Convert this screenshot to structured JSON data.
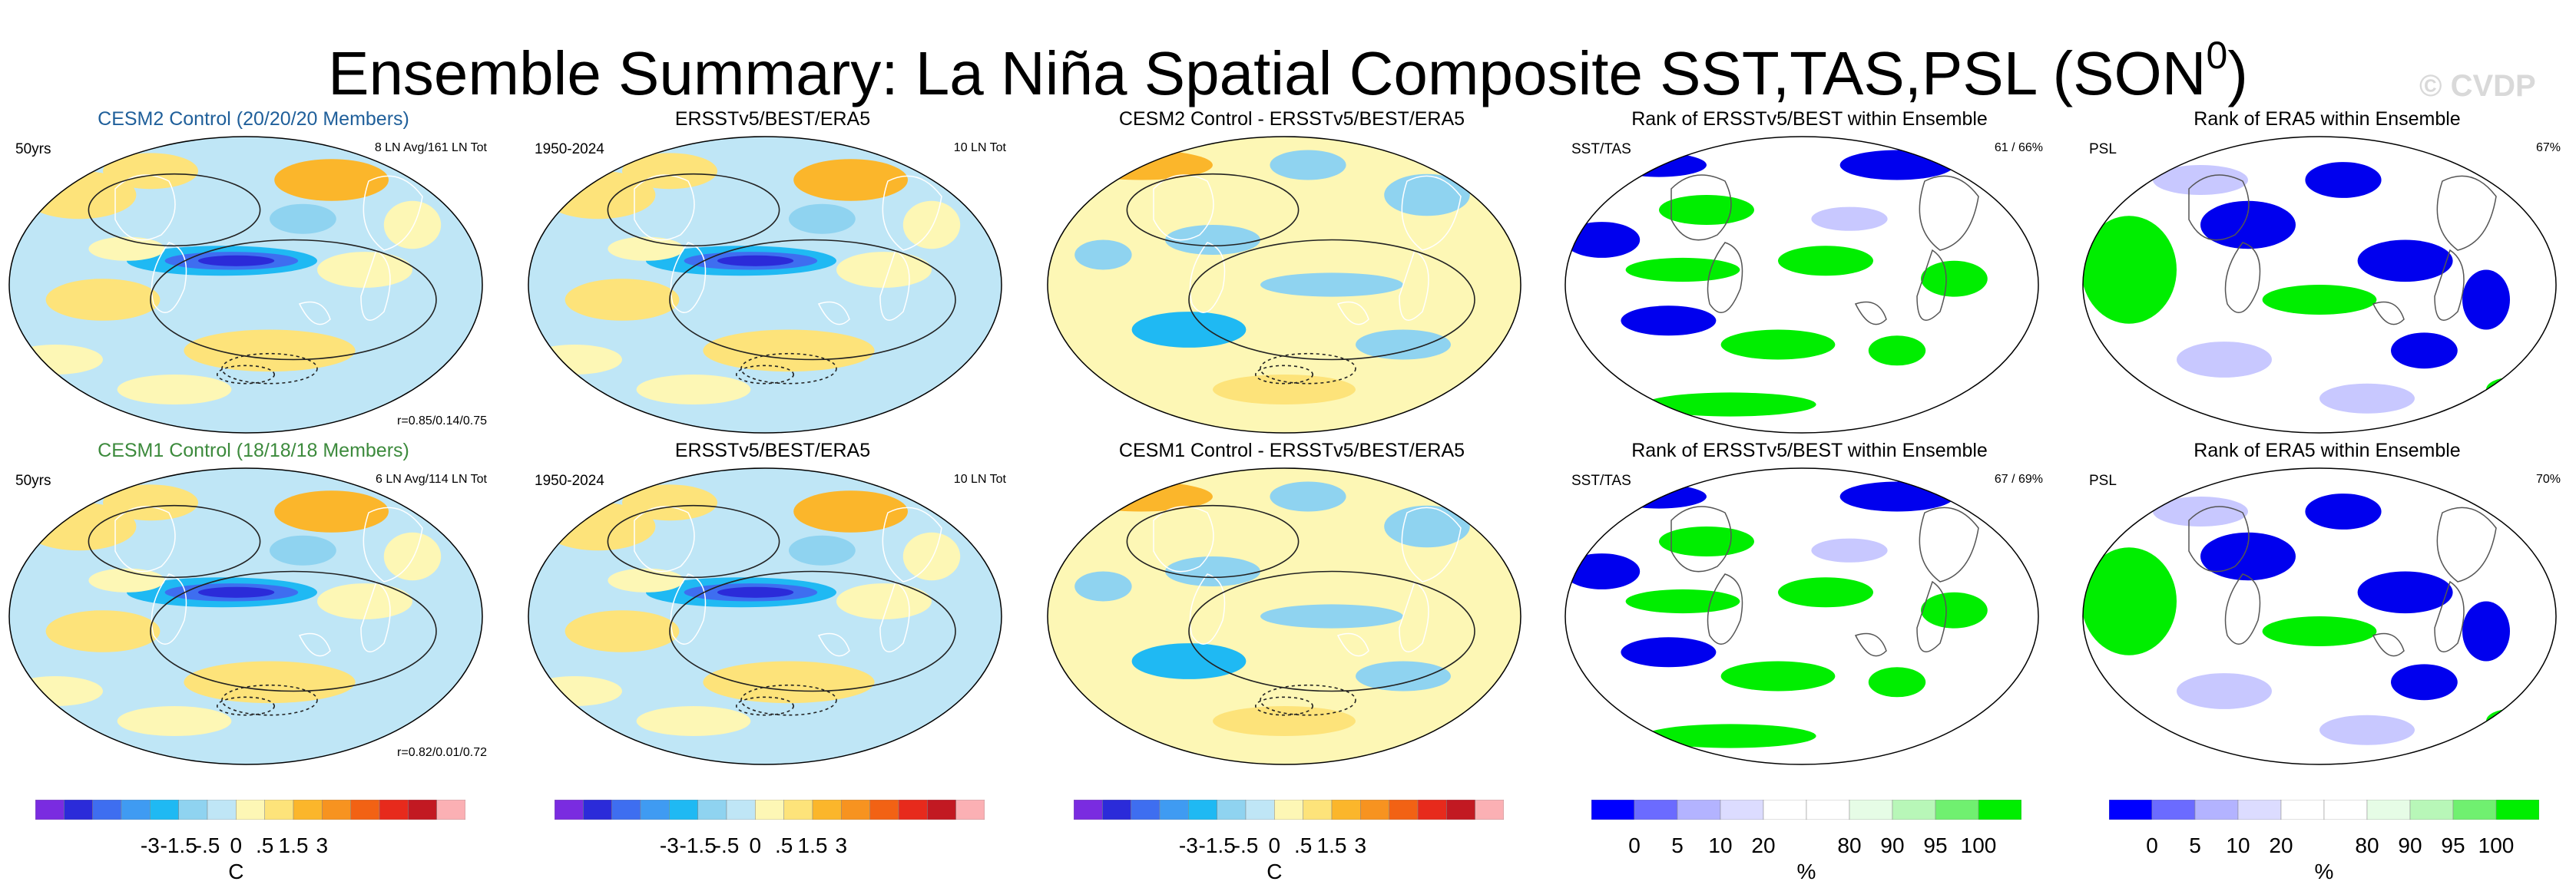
{
  "header": {
    "title": "Ensemble Summary: La Niña Spatial Composite SST,TAS,PSL (SON",
    "title_sup": "0",
    "title_close": ")",
    "watermark": "© CVDP"
  },
  "colors": {
    "diverging": [
      "#7a2ce0",
      "#2b2bd9",
      "#3e6ef0",
      "#3f9bf2",
      "#1fb9f3",
      "#8fd3f0",
      "#bfe6f6",
      "#fdf7b5",
      "#fde37a",
      "#fbb62b",
      "#f79320",
      "#f26214",
      "#e72a1c",
      "#c21922",
      "#fbb0b4"
    ],
    "rank": [
      "#0000ff",
      "#6b6bff",
      "#b3b3ff",
      "#dcdcff",
      "#ffffff",
      "#ffffff",
      "#e6fce6",
      "#b8f7b8",
      "#70f070",
      "#00ee00"
    ],
    "blue": "#0000ee",
    "green": "#00ee00",
    "light_blue_rank": "#c8c8ff"
  },
  "panels": [
    {
      "id": "r1c1",
      "type": "anomaly",
      "title": "CESM2 Control (20/20/20 Members)",
      "title_color": "#1f5f9a",
      "left_tag": "50yrs",
      "right_tag": "8 LN Avg/161 LN Tot",
      "stat": "r=0.85/0.14/0.75"
    },
    {
      "id": "r1c2",
      "type": "anomaly",
      "title": "ERSSTv5/BEST/ERA5",
      "title_color": "#000000",
      "left_tag": "1950-2024",
      "right_tag": "10 LN Tot",
      "stat": ""
    },
    {
      "id": "r1c3",
      "type": "diff",
      "title": "CESM2 Control - ERSSTv5/BEST/ERA5",
      "title_color": "#000000",
      "left_tag": "",
      "right_tag": "",
      "stat": ""
    },
    {
      "id": "r1c4",
      "type": "rank",
      "title": "Rank of ERSSTv5/BEST within Ensemble",
      "title_color": "#000000",
      "left_tag": "SST/TAS",
      "right_tag": "61 /  66%",
      "stat": ""
    },
    {
      "id": "r1c5",
      "type": "rank2",
      "title": "Rank of ERA5 within Ensemble",
      "title_color": "#000000",
      "left_tag": "PSL",
      "right_tag": "67%",
      "stat": ""
    },
    {
      "id": "r2c1",
      "type": "anomaly",
      "title": "CESM1 Control (18/18/18 Members)",
      "title_color": "#3c8a3c",
      "left_tag": "50yrs",
      "right_tag": "6 LN Avg/114 LN Tot",
      "stat": "r=0.82/0.01/0.72"
    },
    {
      "id": "r2c2",
      "type": "anomaly",
      "title": "ERSSTv5/BEST/ERA5",
      "title_color": "#000000",
      "left_tag": "1950-2024",
      "right_tag": "10 LN Tot",
      "stat": ""
    },
    {
      "id": "r2c3",
      "type": "diff",
      "title": "CESM1 Control - ERSSTv5/BEST/ERA5",
      "title_color": "#000000",
      "left_tag": "",
      "right_tag": "",
      "stat": ""
    },
    {
      "id": "r2c4",
      "type": "rank",
      "title": "Rank of ERSSTv5/BEST within Ensemble",
      "title_color": "#000000",
      "left_tag": "SST/TAS",
      "right_tag": "67 /  69%",
      "stat": ""
    },
    {
      "id": "r2c5",
      "type": "rank2",
      "title": "Rank of ERA5 within Ensemble",
      "title_color": "#000000",
      "left_tag": "PSL",
      "right_tag": "70%",
      "stat": ""
    }
  ],
  "colorbars": [
    {
      "kind": "diverging",
      "ticks": [
        "-3",
        "-1.5",
        "-.5",
        "0",
        ".5",
        "1.5",
        "3"
      ],
      "unit": "C"
    },
    {
      "kind": "diverging",
      "ticks": [
        "-3",
        "-1.5",
        "-.5",
        "0",
        ".5",
        "1.5",
        "3"
      ],
      "unit": ""
    },
    {
      "kind": "diverging",
      "ticks": [
        "-3",
        "-1.5",
        "-.5",
        "0",
        ".5",
        "1.5",
        "3"
      ],
      "unit": "C"
    },
    {
      "kind": "rank",
      "ticks": [
        "0",
        "5",
        "10",
        "20",
        "80",
        "90",
        "95",
        "100"
      ],
      "unit": "%"
    },
    {
      "kind": "rank",
      "ticks": [
        "0",
        "5",
        "10",
        "20",
        "80",
        "90",
        "95",
        "100"
      ],
      "unit": "%"
    }
  ],
  "chart_data": {
    "type": "heatmap",
    "title": "Ensemble Summary: La Niña Spatial Composite SST,TAS,PSL (SON0)",
    "anomaly_scale_C": [
      -3,
      -1.5,
      -0.5,
      0,
      0.5,
      1.5,
      3
    ],
    "rank_scale_pct": [
      0,
      5,
      10,
      20,
      80,
      90,
      95,
      100
    ],
    "series": [
      {
        "name": "CESM2 Control (20/20/20 Members)",
        "pattern_correlation": [
          0.85,
          0.14,
          0.75
        ]
      },
      {
        "name": "CESM1 Control (18/18/18 Members)",
        "pattern_correlation": [
          0.82,
          0.01,
          0.72
        ]
      }
    ],
    "rank_summary": [
      {
        "panel": "Rank of ERSSTv5/BEST within Ensemble (CESM2)",
        "sst_tas": "61 /  66%"
      },
      {
        "panel": "Rank of ERA5 within Ensemble (CESM2)",
        "psl": "67%"
      },
      {
        "panel": "Rank of ERSSTv5/BEST within Ensemble (CESM1)",
        "sst_tas": "67 /  69%"
      },
      {
        "panel": "Rank of ERA5 within Ensemble (CESM1)",
        "psl": "70%"
      }
    ]
  }
}
